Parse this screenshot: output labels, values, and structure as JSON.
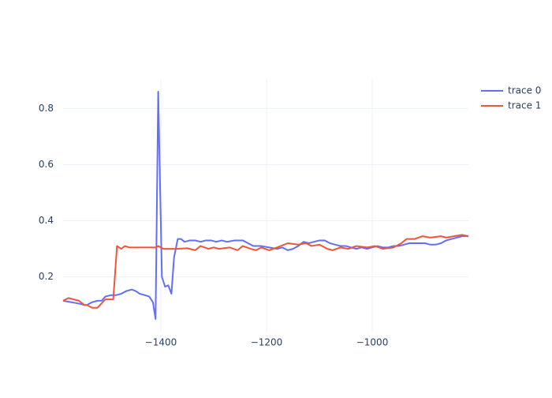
{
  "chart_data": {
    "type": "line",
    "xlim": [
      -1585,
      -818
    ],
    "ylim": [
      0.005,
      0.905
    ],
    "xticks": [
      {
        "value": -1400,
        "label": "−1400"
      },
      {
        "value": -1200,
        "label": "−1200"
      },
      {
        "value": -1000,
        "label": "−1000"
      }
    ],
    "yticks": [
      0.2,
      0.4,
      0.6,
      0.8
    ],
    "grid": true,
    "legend": "right",
    "series": [
      {
        "name": "trace 0",
        "color": "#636efa",
        "x": [
          -1585,
          -1570,
          -1555,
          -1545,
          -1540,
          -1530,
          -1520,
          -1512,
          -1505,
          -1495,
          -1485,
          -1475,
          -1465,
          -1455,
          -1448,
          -1440,
          -1430,
          -1422,
          -1415,
          -1410,
          -1405,
          -1398,
          -1392,
          -1386,
          -1380,
          -1375,
          -1368,
          -1362,
          -1355,
          -1345,
          -1335,
          -1325,
          -1315,
          -1305,
          -1295,
          -1285,
          -1275,
          -1260,
          -1245,
          -1235,
          -1225,
          -1210,
          -1195,
          -1180,
          -1170,
          -1160,
          -1150,
          -1140,
          -1130,
          -1120,
          -1110,
          -1100,
          -1090,
          -1080,
          -1070,
          -1060,
          -1050,
          -1040,
          -1030,
          -1020,
          -1010,
          -1000,
          -990,
          -980,
          -970,
          -960,
          -950,
          -940,
          -930,
          -920,
          -910,
          -900,
          -890,
          -880,
          -870,
          -860,
          -850,
          -840,
          -830,
          -818
        ],
        "values": [
          0.115,
          0.11,
          0.105,
          0.1,
          0.1,
          0.11,
          0.115,
          0.115,
          0.13,
          0.135,
          0.135,
          0.14,
          0.15,
          0.155,
          0.15,
          0.14,
          0.135,
          0.13,
          0.11,
          0.05,
          0.86,
          0.2,
          0.165,
          0.17,
          0.14,
          0.27,
          0.335,
          0.335,
          0.325,
          0.33,
          0.33,
          0.325,
          0.33,
          0.33,
          0.325,
          0.33,
          0.325,
          0.33,
          0.33,
          0.32,
          0.31,
          0.31,
          0.305,
          0.3,
          0.305,
          0.295,
          0.3,
          0.31,
          0.325,
          0.32,
          0.325,
          0.33,
          0.33,
          0.32,
          0.315,
          0.31,
          0.31,
          0.305,
          0.3,
          0.305,
          0.3,
          0.305,
          0.31,
          0.305,
          0.305,
          0.31,
          0.31,
          0.315,
          0.32,
          0.32,
          0.32,
          0.32,
          0.315,
          0.315,
          0.32,
          0.33,
          0.335,
          0.34,
          0.345,
          0.345
        ]
      },
      {
        "name": "trace 1",
        "color": "#ef553b",
        "x": [
          -1585,
          -1575,
          -1565,
          -1555,
          -1545,
          -1540,
          -1530,
          -1520,
          -1515,
          -1505,
          -1490,
          -1483,
          -1475,
          -1468,
          -1460,
          -1450,
          -1440,
          -1430,
          -1420,
          -1410,
          -1405,
          -1395,
          -1385,
          -1370,
          -1350,
          -1335,
          -1325,
          -1310,
          -1300,
          -1290,
          -1270,
          -1255,
          -1245,
          -1230,
          -1220,
          -1210,
          -1195,
          -1180,
          -1160,
          -1140,
          -1125,
          -1115,
          -1100,
          -1085,
          -1075,
          -1060,
          -1045,
          -1030,
          -1010,
          -995,
          -980,
          -960,
          -945,
          -935,
          -920,
          -905,
          -890,
          -870,
          -860,
          -845,
          -830,
          -818
        ],
        "values": [
          0.115,
          0.125,
          0.12,
          0.115,
          0.1,
          0.1,
          0.09,
          0.09,
          0.1,
          0.12,
          0.12,
          0.31,
          0.3,
          0.31,
          0.305,
          0.305,
          0.305,
          0.305,
          0.305,
          0.305,
          0.31,
          0.3,
          0.3,
          0.3,
          0.302,
          0.295,
          0.31,
          0.3,
          0.305,
          0.3,
          0.305,
          0.295,
          0.31,
          0.3,
          0.295,
          0.305,
          0.295,
          0.305,
          0.32,
          0.315,
          0.32,
          0.31,
          0.315,
          0.3,
          0.295,
          0.305,
          0.3,
          0.31,
          0.305,
          0.31,
          0.3,
          0.305,
          0.32,
          0.335,
          0.335,
          0.345,
          0.34,
          0.345,
          0.34,
          0.345,
          0.35,
          0.345
        ]
      }
    ]
  }
}
